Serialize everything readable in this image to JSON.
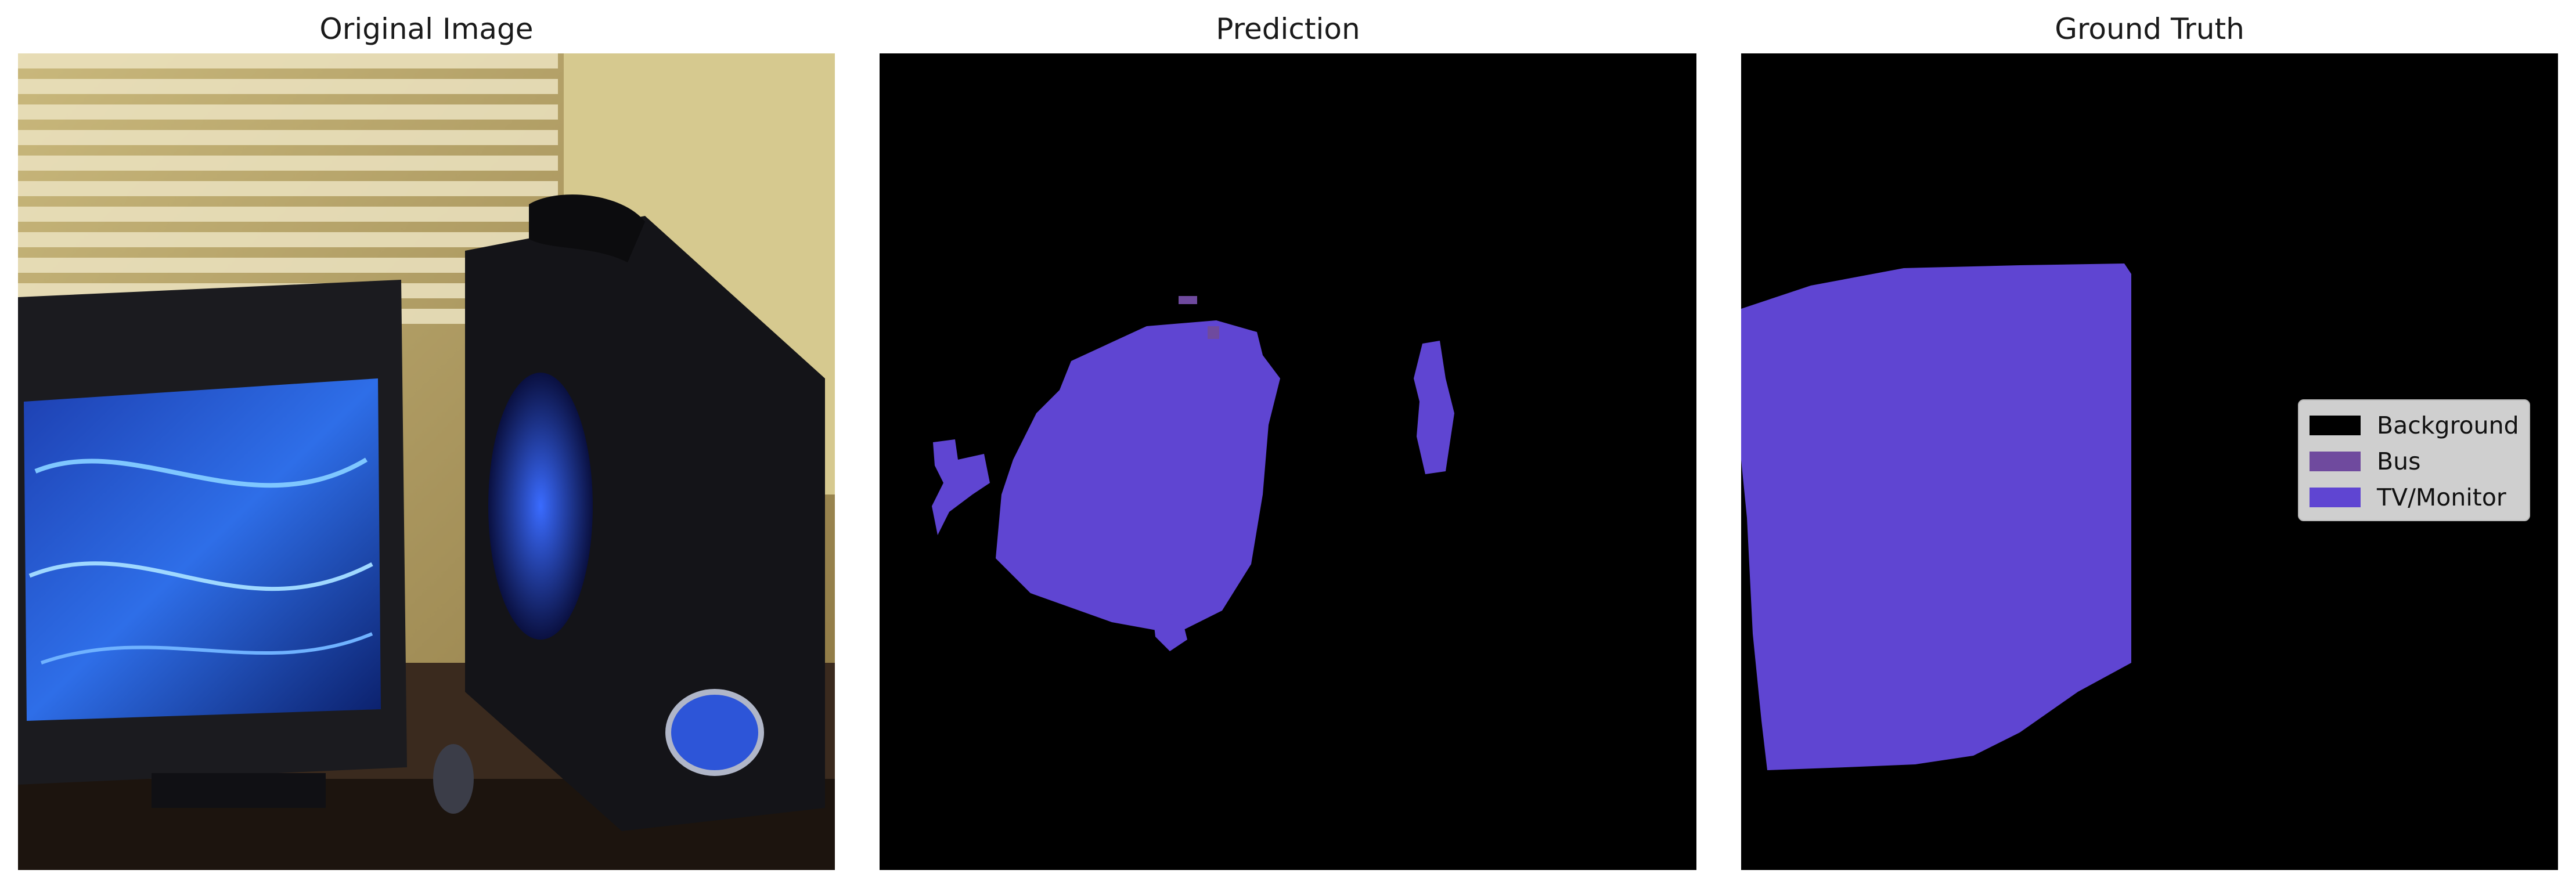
{
  "panels": [
    {
      "title": "Original Image"
    },
    {
      "title": "Prediction"
    },
    {
      "title": "Ground Truth"
    }
  ],
  "legend": [
    {
      "label": "Background",
      "color": "#000000"
    },
    {
      "label": "Bus",
      "color": "#6f4a9e"
    },
    {
      "label": "TV/Monitor",
      "color": "#5f45d2"
    }
  ]
}
